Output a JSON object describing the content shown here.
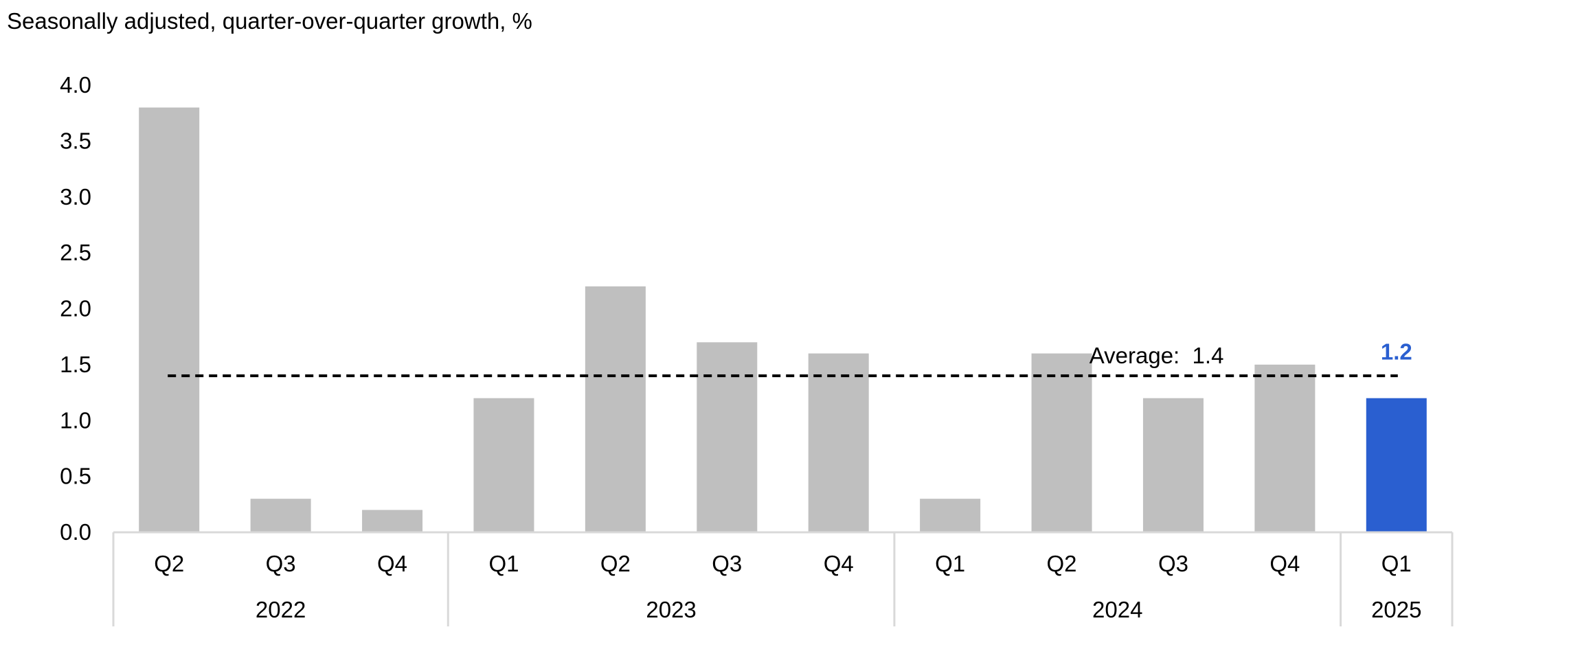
{
  "chart_data": {
    "type": "bar",
    "subtitle": "Seasonally adjusted, quarter-over-quarter growth, %",
    "categories": [
      "Q2",
      "Q3",
      "Q4",
      "Q1",
      "Q2",
      "Q3",
      "Q4",
      "Q1",
      "Q2",
      "Q3",
      "Q4",
      "Q1"
    ],
    "groups": [
      {
        "label": "2022",
        "size": 3
      },
      {
        "label": "2023",
        "size": 4
      },
      {
        "label": "2024",
        "size": 4
      },
      {
        "label": "2025",
        "size": 1
      }
    ],
    "values": [
      3.8,
      0.3,
      0.2,
      1.2,
      2.2,
      1.7,
      1.6,
      0.3,
      1.6,
      1.2,
      1.5,
      1.2
    ],
    "highlight_index": 11,
    "highlight_label": "1.2",
    "average": {
      "value": 1.4,
      "label": "Average:  1.4"
    },
    "ylim": [
      0,
      4
    ],
    "yticks": [
      "0.0",
      "0.5",
      "1.0",
      "1.5",
      "2.0",
      "2.5",
      "3.0",
      "3.5",
      "4.0"
    ],
    "colors": {
      "bar": "#bfbfbf",
      "highlight": "#2a5fd0",
      "axis": "#d9d9d9",
      "average_line": "#000000"
    },
    "grid": false,
    "legend": "none"
  }
}
